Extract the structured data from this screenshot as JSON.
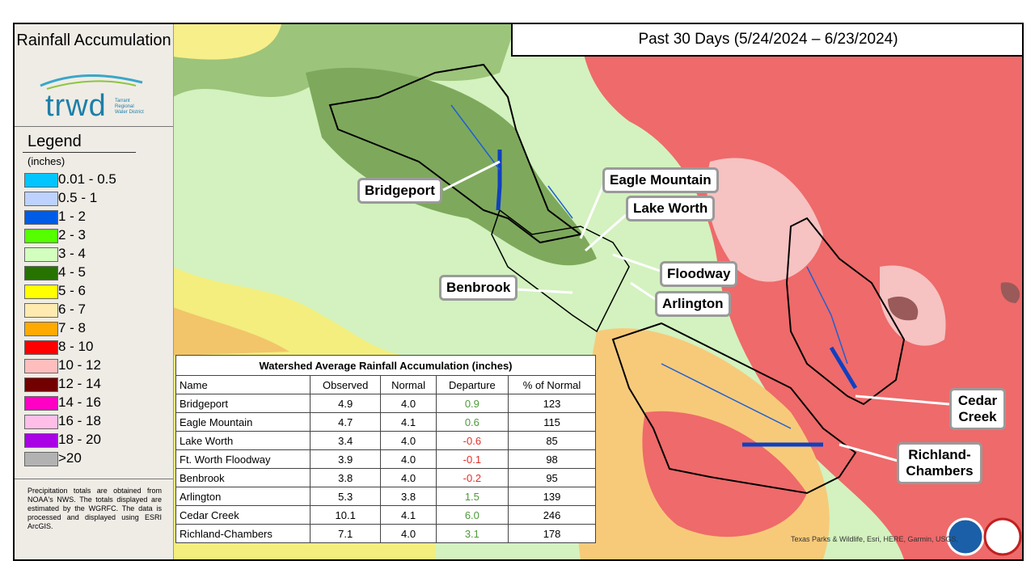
{
  "sidebar": {
    "title": "Rainfall Accumulation",
    "logo": {
      "name": "trwd",
      "subtitle": "Tarrant Regional Water District"
    },
    "legend": {
      "title": "Legend",
      "units": "(inches)",
      "items": [
        {
          "label": "0.01 - 0.5",
          "color": "#00c5ff"
        },
        {
          "label": "0.5 - 1",
          "color": "#bed2ff"
        },
        {
          "label": "1 - 2",
          "color": "#005ce6"
        },
        {
          "label": "2 - 3",
          "color": "#55ff00"
        },
        {
          "label": "3 - 4",
          "color": "#d3ffbe"
        },
        {
          "label": "4 - 5",
          "color": "#267300"
        },
        {
          "label": "5 - 6",
          "color": "#ffff00"
        },
        {
          "label": "6 - 7",
          "color": "#ffebaf"
        },
        {
          "label": "7 - 8",
          "color": "#ffaa00"
        },
        {
          "label": "8 - 10",
          "color": "#ff0000"
        },
        {
          "label": "10 - 12",
          "color": "#ffbebe"
        },
        {
          "label": "12 - 14",
          "color": "#730000"
        },
        {
          "label": "14 - 16",
          "color": "#ff00c5"
        },
        {
          "label": "16 - 18",
          "color": "#ffbee8"
        },
        {
          "label": "18 - 20",
          "color": "#a900e6"
        },
        {
          "label": ">20",
          "color": "#b2b2b2"
        }
      ]
    },
    "note": "Precipitation totals are obtained from NOAA's NWS. The totals displayed are estimated by the WGRFC. The data is processed and displayed using ESRI ArcGIS."
  },
  "header": {
    "title": "Past 30 Days (5/24/2024 – 6/23/2024)"
  },
  "map": {
    "labels": [
      "Bridgeport",
      "Eagle Mountain",
      "Lake Worth",
      "Floodway",
      "Benbrook",
      "Arlington",
      "Cedar Creek",
      "Richland-Chambers"
    ],
    "attribution": "Texas Parks & Wildlife, Esri, HERE, Garmin, USGS,"
  },
  "table": {
    "title": "Watershed Average Rainfall Accumulation (inches)",
    "columns": [
      "Name",
      "Observed",
      "Normal",
      "Departure",
      "% of Normal"
    ],
    "rows": [
      [
        "Bridgeport",
        "4.9",
        "4.0",
        "0.9",
        "123"
      ],
      [
        "Eagle Mountain",
        "4.7",
        "4.1",
        "0.6",
        "115"
      ],
      [
        "Lake Worth",
        "3.4",
        "4.0",
        "-0.6",
        "85"
      ],
      [
        "Ft. Worth Floodway",
        "3.9",
        "4.0",
        "-0.1",
        "98"
      ],
      [
        "Benbrook",
        "3.8",
        "4.0",
        "-0.2",
        "95"
      ],
      [
        "Arlington",
        "5.3",
        "3.8",
        "1.5",
        "139"
      ],
      [
        "Cedar Creek",
        "10.1",
        "4.1",
        "6.0",
        "246"
      ],
      [
        "Richland-Chambers",
        "7.1",
        "4.0",
        "3.1",
        "178"
      ]
    ]
  }
}
